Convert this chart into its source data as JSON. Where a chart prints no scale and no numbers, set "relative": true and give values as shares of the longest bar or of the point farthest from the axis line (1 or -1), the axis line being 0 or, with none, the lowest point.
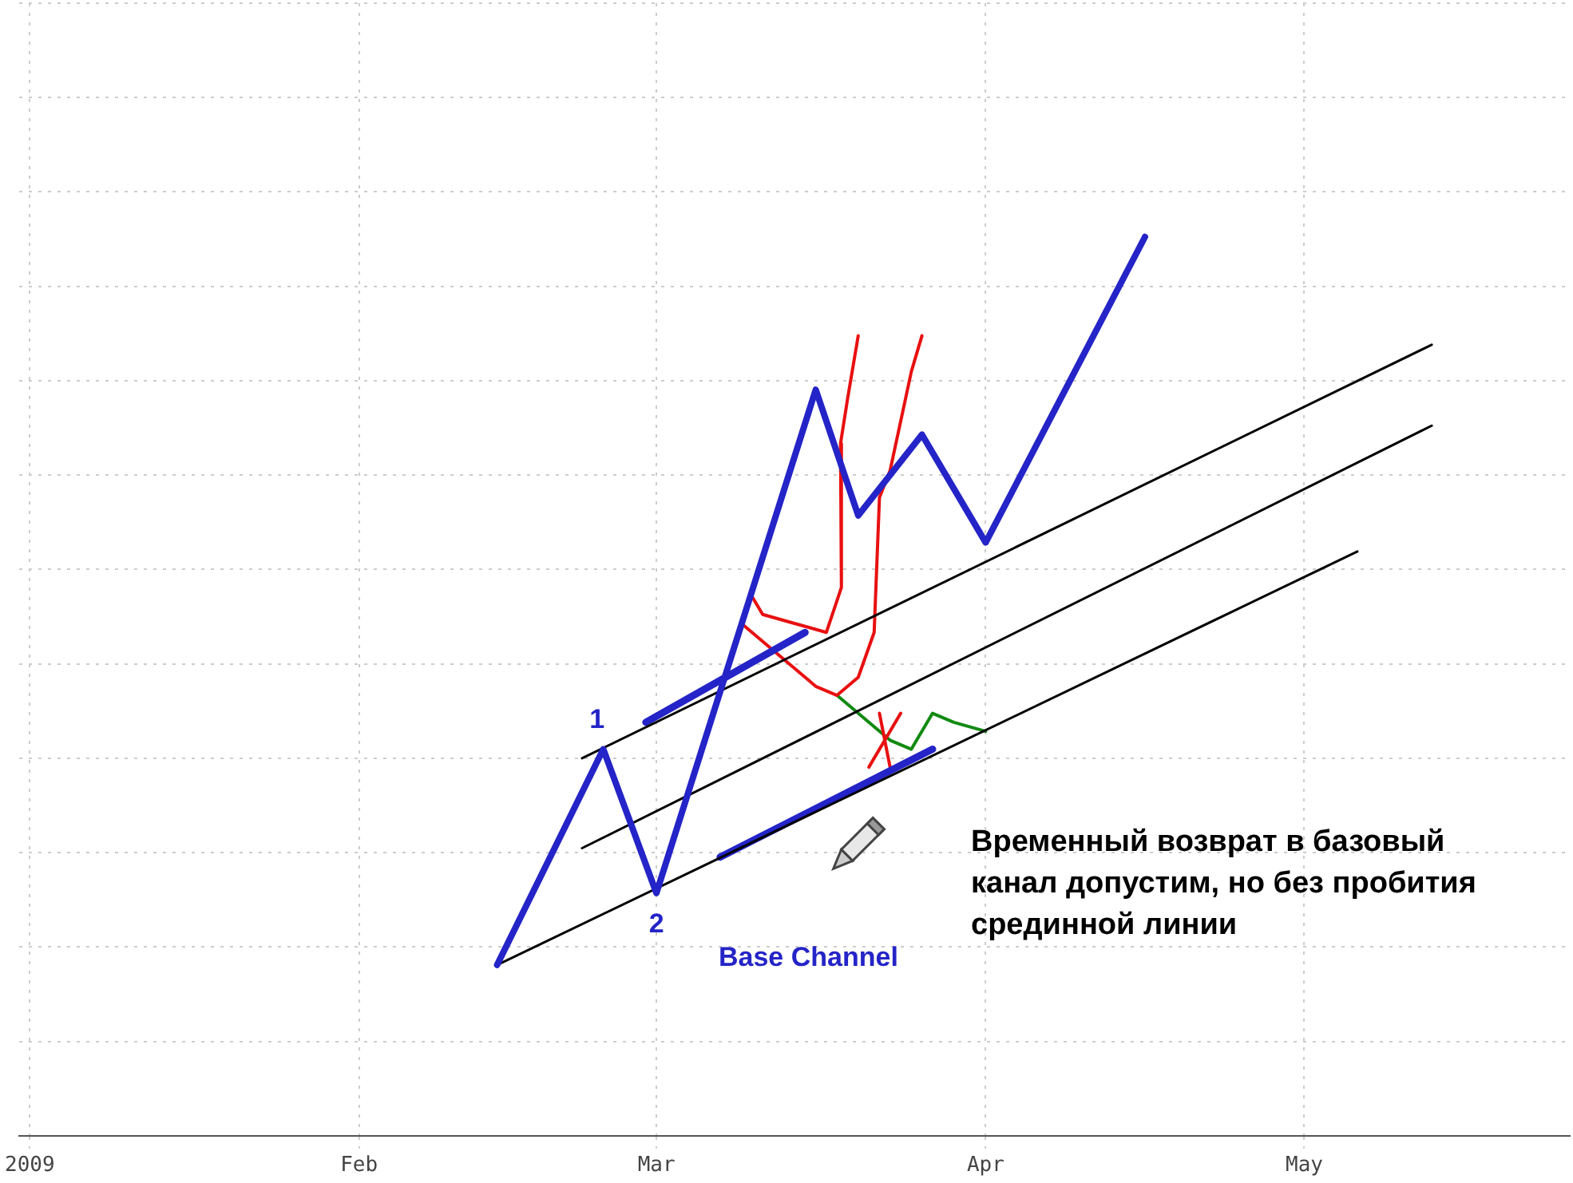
{
  "chart_data": {
    "type": "line",
    "relative": true,
    "grid": true,
    "legend": false,
    "marker": "none",
    "line_style": "solid",
    "xlim": [
      "2008-12-31",
      "2009-05-26"
    ],
    "xticks": [
      {
        "value": "2009-01-01",
        "label": "2009"
      },
      {
        "value": "2009-02-01",
        "label": "Feb"
      },
      {
        "value": "2009-03-01",
        "label": "Mar"
      },
      {
        "value": "2009-04-01",
        "label": "Apr"
      },
      {
        "value": "2009-05-01",
        "label": "May"
      }
    ],
    "series": [
      {
        "color": "#2424c8",
        "x": [
          "2009-02-14",
          "2009-02-24",
          "2009-03-01",
          "2009-03-16",
          "2009-03-20",
          "2009-03-26",
          "2009-04-01",
          "2009-04-16"
        ],
        "values": [
          0.19,
          0.43,
          0.27,
          0.83,
          0.69,
          0.78,
          0.66,
          1
        ]
      },
      {
        "color": "#000000",
        "x": [
          "2009-02-14",
          "2009-05-06"
        ],
        "values": [
          0.19,
          0.65
        ]
      },
      {
        "color": "#000000",
        "x": [
          "2009-02-22",
          "2009-05-13"
        ],
        "values": [
          0.32,
          0.79
        ]
      },
      {
        "color": "#000000",
        "x": [
          "2009-02-22",
          "2009-05-13"
        ],
        "values": [
          0.42,
          0.88
        ]
      },
      {
        "color": "#2424c8",
        "x": [
          "2009-02-28",
          "2009-03-15"
        ],
        "values": [
          0.46,
          0.56
        ]
      },
      {
        "color": "#2424c8",
        "x": [
          "2009-03-07",
          "2009-03-27"
        ],
        "values": [
          0.31,
          0.43
        ]
      },
      {
        "color": "#e81010",
        "x": [
          "2009-03-20",
          "2009-03-19",
          "2009-03-18T08:00",
          "2009-03-18T10:00",
          "2009-03-17",
          "2009-03-14",
          "2009-03-11",
          "2009-03-10"
        ],
        "values": [
          0.89,
          0.82,
          0.77,
          0.61,
          0.56,
          0.57,
          0.58,
          0.6
        ]
      },
      {
        "color": "#e81010",
        "x": [
          "2009-03-26",
          "2009-03-25",
          "2009-03-23",
          "2009-03-22",
          "2009-03-21T20:00",
          "2009-03-21T12:00",
          "2009-03-20",
          "2009-03-18",
          "2009-03-16",
          "2009-03-13",
          "2009-03-10",
          "2009-03-09"
        ],
        "values": [
          0.89,
          0.85,
          0.74,
          0.71,
          0.66,
          0.56,
          0.51,
          0.49,
          0.5,
          0.53,
          0.56,
          0.57
        ]
      },
      {
        "color": "#e81010",
        "x": [
          "2009-03-22",
          "2009-03-23"
        ],
        "values": [
          0.47,
          0.41
        ]
      },
      {
        "color": "#e81010",
        "x": [
          "2009-03-21",
          "2009-03-24"
        ],
        "values": [
          0.41,
          0.47
        ]
      },
      {
        "color": "#128a12",
        "x": [
          "2009-03-18",
          "2009-03-21",
          "2009-03-23",
          "2009-03-25",
          "2009-03-27",
          "2009-03-29",
          "2009-04-01"
        ],
        "values": [
          0.49,
          0.46,
          0.44,
          0.43,
          0.47,
          0.46,
          0.45
        ]
      }
    ],
    "annotations": [
      {
        "text": "1",
        "x": "2009-02-24",
        "y": 0.43
      },
      {
        "text": "2",
        "x": "2009-03-01",
        "y": 0.27
      },
      "Base Channel",
      "Временный возврат в базовый канал допустим, но без пробития срединной линии"
    ]
  }
}
